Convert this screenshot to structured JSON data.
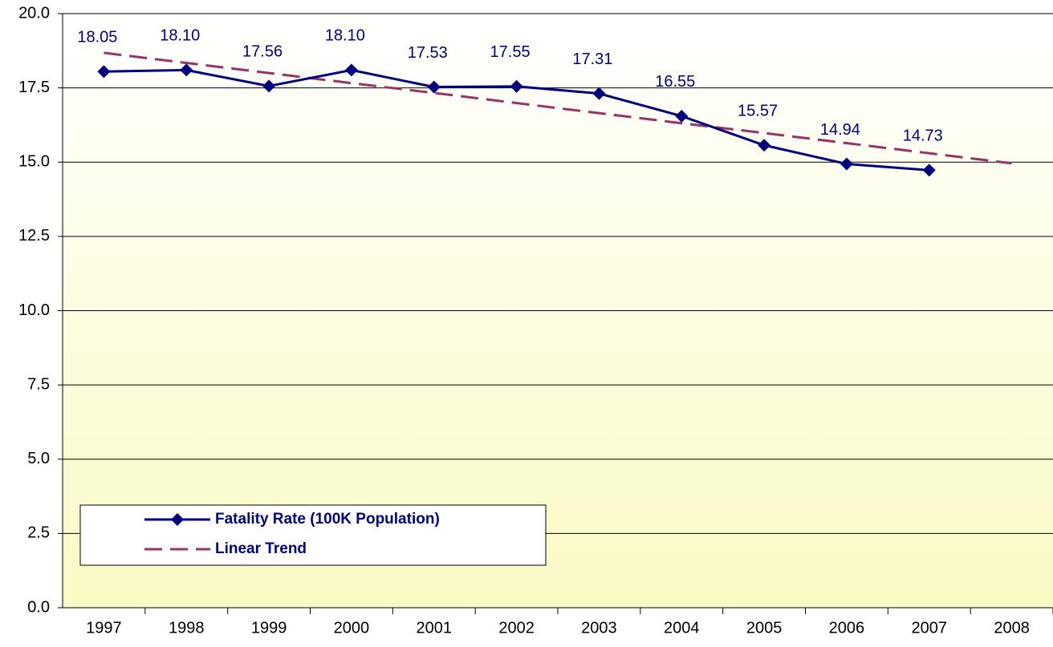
{
  "chart_data": {
    "type": "line",
    "categories": [
      "1997",
      "1998",
      "1999",
      "2000",
      "2001",
      "2002",
      "2003",
      "2004",
      "2005",
      "2006",
      "2007",
      "2008"
    ],
    "series": [
      {
        "name": "Fatality Rate (100K Population)",
        "color": "#000080",
        "values": [
          18.05,
          18.1,
          17.56,
          18.1,
          17.53,
          17.55,
          17.31,
          16.55,
          15.57,
          14.94,
          14.73,
          null
        ],
        "value_labels": [
          "18.05",
          "18.10",
          "17.56",
          "18.10",
          "17.53",
          "17.55",
          "17.31",
          "16.55",
          "15.57",
          "14.94",
          "14.73",
          null
        ]
      },
      {
        "name": "Linear Trend",
        "color": "#993366",
        "dashed": true,
        "values": [
          18.68,
          18.34,
          18.0,
          17.66,
          17.33,
          16.99,
          16.65,
          16.31,
          15.98,
          15.64,
          15.3,
          14.96
        ]
      }
    ],
    "ylim": [
      0,
      20
    ],
    "yticks": [
      {
        "value": 0,
        "label": "0.0"
      },
      {
        "value": 2.5,
        "label": "2.5"
      },
      {
        "value": 5,
        "label": "5.0"
      },
      {
        "value": 7.5,
        "label": "7.5"
      },
      {
        "value": 10,
        "label": "10.0"
      },
      {
        "value": 12.5,
        "label": "12.5"
      },
      {
        "value": 15,
        "label": "15.0"
      },
      {
        "value": 17.5,
        "label": "17.5"
      },
      {
        "value": 20,
        "label": "20.0"
      }
    ],
    "grid": true,
    "legend": "lower left"
  }
}
